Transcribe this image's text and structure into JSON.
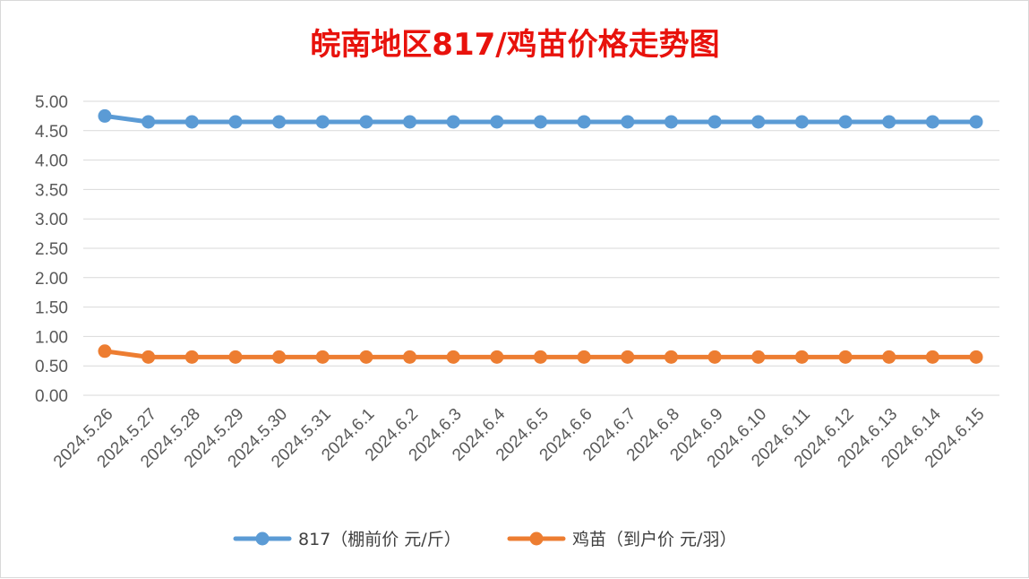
{
  "chart_data": {
    "type": "line",
    "title": "皖南地区817/鸡苗价格走势图",
    "xlabel": "",
    "ylabel": "",
    "ylim": [
      0,
      5
    ],
    "y_ticks": [
      "0.00",
      "0.50",
      "1.00",
      "1.50",
      "2.00",
      "2.50",
      "3.00",
      "3.50",
      "4.00",
      "4.50",
      "5.00"
    ],
    "grid": true,
    "legend_position": "bottom",
    "categories": [
      "2024.5.26",
      "2024.5.27",
      "2024.5.28",
      "2024.5.29",
      "2024.5.30",
      "2024.5.31",
      "2024.6.1",
      "2024.6.2",
      "2024.6.3",
      "2024.6.4",
      "2024.6.5",
      "2024.6.6",
      "2024.6.7",
      "2024.6.8",
      "2024.6.9",
      "2024.6.10",
      "2024.6.11",
      "2024.6.12",
      "2024.6.13",
      "2024.6.14",
      "2024.6.15"
    ],
    "series": [
      {
        "name": "817（棚前价 元/斤）",
        "color": "#5b9bd5",
        "values": [
          4.75,
          4.65,
          4.65,
          4.65,
          4.65,
          4.65,
          4.65,
          4.65,
          4.65,
          4.65,
          4.65,
          4.65,
          4.65,
          4.65,
          4.65,
          4.65,
          4.65,
          4.65,
          4.65,
          4.65,
          4.65
        ]
      },
      {
        "name": "鸡苗（到户价 元/羽）",
        "color": "#ed7d31",
        "values": [
          0.75,
          0.65,
          0.65,
          0.65,
          0.65,
          0.65,
          0.65,
          0.65,
          0.65,
          0.65,
          0.65,
          0.65,
          0.65,
          0.65,
          0.65,
          0.65,
          0.65,
          0.65,
          0.65,
          0.65,
          0.65
        ]
      }
    ]
  }
}
